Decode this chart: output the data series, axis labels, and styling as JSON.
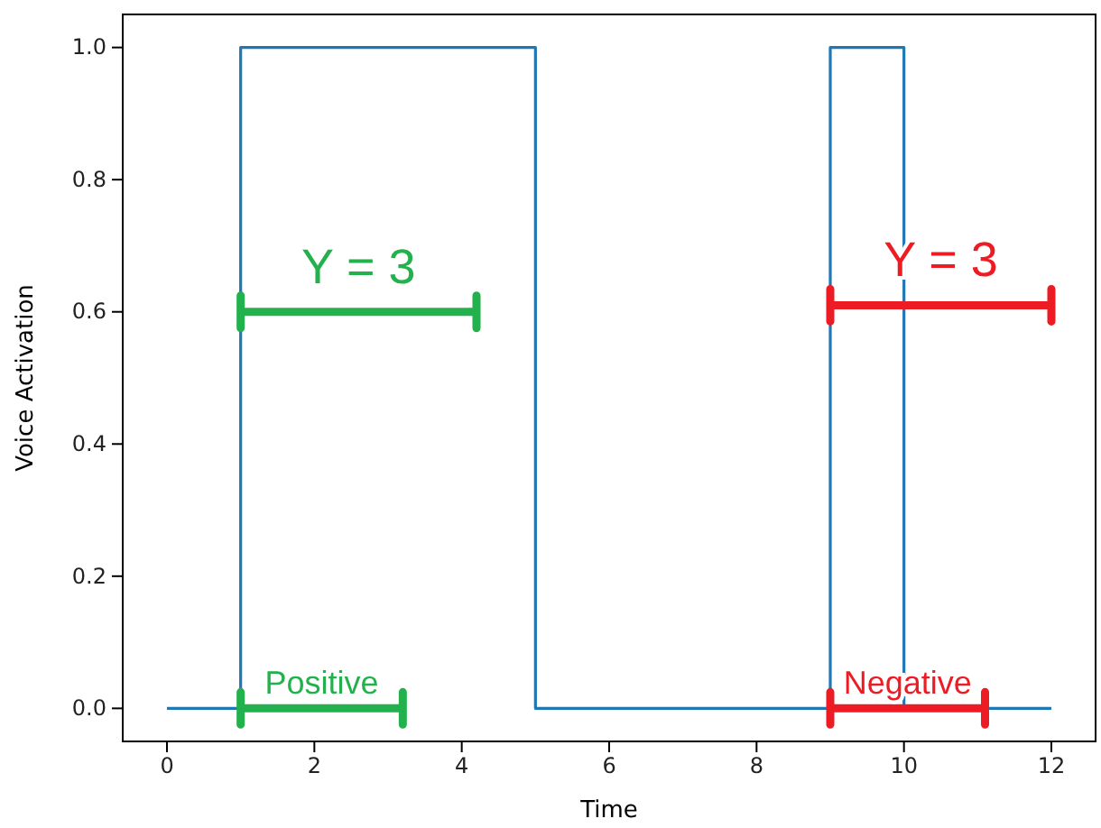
{
  "chart_data": {
    "type": "step",
    "xlabel": "Time",
    "ylabel": "Voice Activation",
    "xlim": [
      -0.6,
      12.6
    ],
    "ylim": [
      -0.05,
      1.05
    ],
    "xticks": [
      0,
      2,
      4,
      6,
      8,
      10,
      12
    ],
    "yticks": [
      {
        "value": 0,
        "label": "0.0"
      },
      {
        "value": 0.2,
        "label": "0.2"
      },
      {
        "value": 0.4,
        "label": "0.4"
      },
      {
        "value": 0.6,
        "label": "0.6"
      },
      {
        "value": 0.8,
        "label": "0.8"
      },
      {
        "value": 1,
        "label": "1.0"
      }
    ],
    "series": [
      {
        "color": "#1f77b4",
        "x": [
          0,
          1,
          5,
          9,
          10,
          12
        ],
        "values": [
          0,
          1,
          0,
          1,
          0,
          0
        ]
      },
      {
        "type": "line",
        "color": "#22b14c",
        "x": [
          1,
          4.2
        ],
        "values": [
          0.6,
          0.6
        ]
      },
      {
        "type": "line",
        "color": "#ed1c24",
        "x": [
          9,
          12
        ],
        "values": [
          0.61,
          0.61
        ]
      },
      {
        "type": "line",
        "color": "#22b14c",
        "x": [
          1,
          3.2
        ],
        "values": [
          0,
          0
        ]
      },
      {
        "type": "line",
        "color": "#ed1c24",
        "x": [
          9,
          11.1
        ],
        "values": [
          0,
          0
        ]
      }
    ],
    "annotations": [
      "Y = 3",
      "Y = 3",
      "Positive",
      "Negative"
    ]
  }
}
